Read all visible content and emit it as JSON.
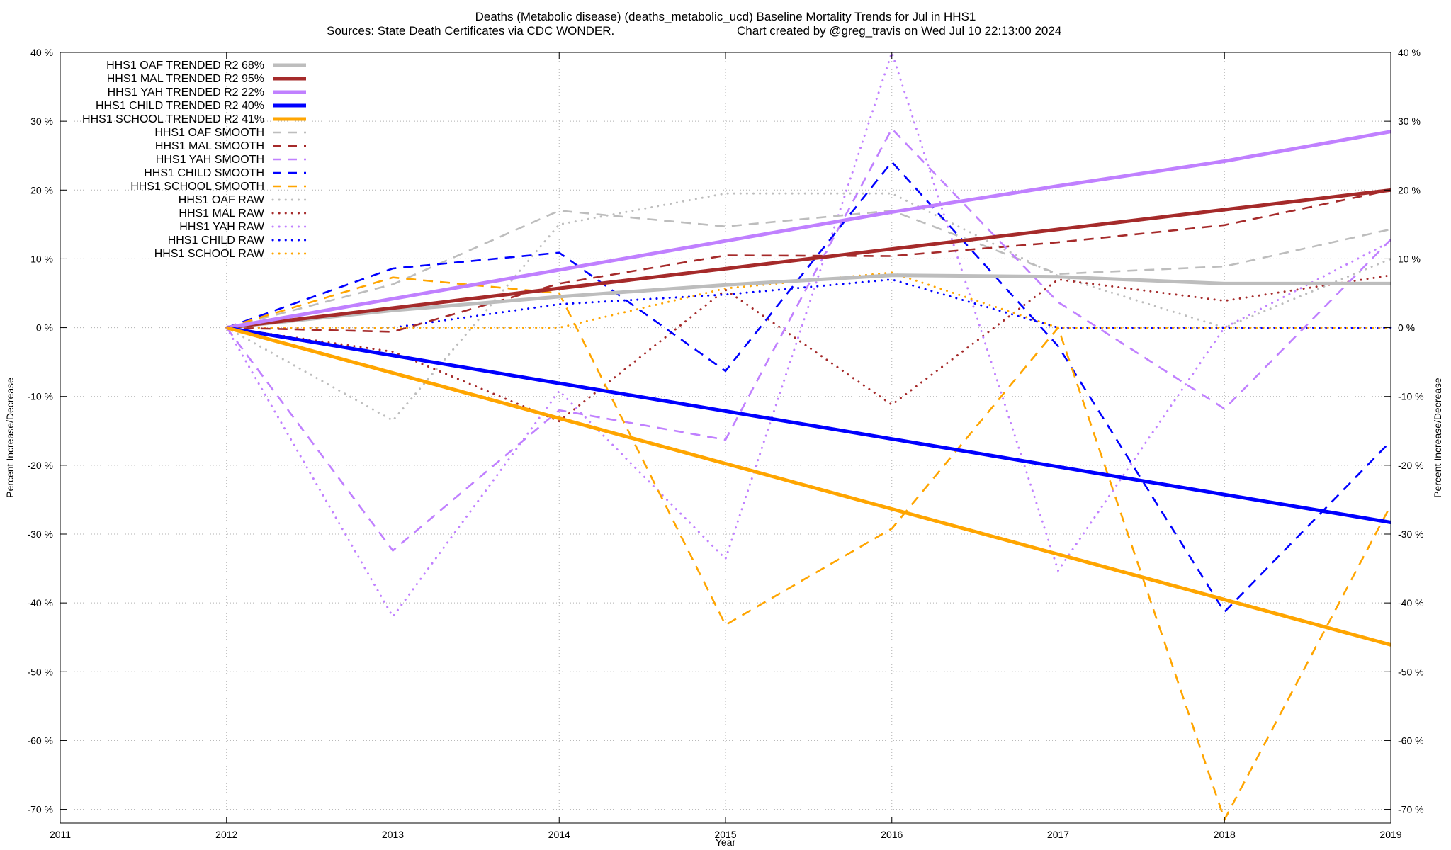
{
  "chart_data": {
    "type": "line",
    "title_line1": "Deaths (Metabolic disease) (deaths_metabolic_ucd)  Baseline Mortality Trends for Jul in HHS1",
    "title_line2_left": "Sources: State Death Certificates via CDC WONDER.",
    "title_line2_right": "Chart created by @greg_travis on Wed Jul 10 22:13:00 2024",
    "xlabel": "Year",
    "ylabel_left": "Percent Increase/Decrease",
    "ylabel_right": "Percent Increase/Decrease",
    "xlim": [
      2011,
      2019
    ],
    "ylim": [
      -72,
      40
    ],
    "x_ticks": [
      "2011",
      "2012",
      "2013",
      "2014",
      "2015",
      "2016",
      "2017",
      "2018",
      "2019"
    ],
    "y_ticks": [
      {
        "value": 40,
        "label": "40 %"
      },
      {
        "value": 30,
        "label": "30 %"
      },
      {
        "value": 20,
        "label": "20 %"
      },
      {
        "value": 10,
        "label": "10 %"
      },
      {
        "value": 0,
        "label": "0 %"
      },
      {
        "value": -10,
        "label": "-10 %"
      },
      {
        "value": -20,
        "label": "-20 %"
      },
      {
        "value": -30,
        "label": "-30 %"
      },
      {
        "value": -40,
        "label": "-40 %"
      },
      {
        "value": -50,
        "label": "-50 %"
      },
      {
        "value": -60,
        "label": "-60 %"
      },
      {
        "value": -70,
        "label": "-70 %"
      }
    ],
    "grid": true,
    "legend_position": "top-left",
    "series": [
      {
        "name": "HHS1 OAF TRENDED R2  68%",
        "style": "solid",
        "color": "#bdbdbd",
        "x": [
          2012,
          2013,
          2014,
          2015,
          2016,
          2017,
          2018,
          2019
        ],
        "y": [
          0,
          2.5,
          4.5,
          6.2,
          7.6,
          7.4,
          6.4,
          6.4
        ]
      },
      {
        "name": "HHS1 MAL TRENDED R2  95%",
        "style": "solid",
        "color": "#a52a2a",
        "x": [
          2012,
          2019
        ],
        "y": [
          0,
          20
        ]
      },
      {
        "name": "HHS1 YAH TRENDED R2  22%",
        "style": "solid",
        "color": "#c080ff",
        "x": [
          2012,
          2013,
          2014,
          2015,
          2016,
          2017,
          2018,
          2019
        ],
        "y": [
          0,
          4.2,
          8.4,
          12.6,
          16.8,
          20.6,
          24.2,
          28.5
        ]
      },
      {
        "name": "HHS1 CHILD TRENDED R2  40%",
        "style": "solid",
        "color": "#0000ff",
        "x": [
          2012,
          2019
        ],
        "y": [
          0,
          -28.3
        ]
      },
      {
        "name": "HHS1 SCHOOL TRENDED R2  41%",
        "style": "solid",
        "color": "#ffa500",
        "x": [
          2012,
          2019
        ],
        "y": [
          0,
          -46.1
        ]
      },
      {
        "name": "HHS1 OAF SMOOTH",
        "style": "dashed",
        "color": "#bdbdbd",
        "x": [
          2012,
          2013,
          2014,
          2015,
          2016,
          2017,
          2018,
          2019
        ],
        "y": [
          0,
          6.3,
          17,
          14.7,
          17,
          7.8,
          8.9,
          14.3
        ]
      },
      {
        "name": "HHS1 MAL SMOOTH",
        "style": "dashed",
        "color": "#a52a2a",
        "x": [
          2012,
          2013,
          2014,
          2015,
          2016,
          2017,
          2018,
          2019
        ],
        "y": [
          0,
          -0.6,
          6.4,
          10.5,
          10.4,
          12.4,
          14.9,
          20
        ]
      },
      {
        "name": "HHS1 YAH SMOOTH",
        "style": "dashed",
        "color": "#c080ff",
        "x": [
          2012,
          2013,
          2014,
          2015,
          2016,
          2017,
          2018,
          2019
        ],
        "y": [
          0,
          -32.4,
          -12,
          -16.3,
          28.9,
          3.7,
          -11.8,
          12.8
        ]
      },
      {
        "name": "HHS1 CHILD SMOOTH",
        "style": "dashed",
        "color": "#0000ff",
        "x": [
          2012,
          2013,
          2014,
          2015,
          2016,
          2017,
          2018,
          2019
        ],
        "y": [
          0,
          8.6,
          10.9,
          -6.3,
          24.1,
          -2.7,
          -41.3,
          -16.5
        ]
      },
      {
        "name": "HHS1 SCHOOL SMOOTH",
        "style": "dashed",
        "color": "#ffa500",
        "x": [
          2012,
          2013,
          2014,
          2015,
          2016,
          2017,
          2018,
          2019
        ],
        "y": [
          0,
          7.3,
          5,
          -43.2,
          -29.2,
          0,
          -71.5,
          -25.8
        ]
      },
      {
        "name": "HHS1 OAF RAW",
        "style": "dotted",
        "color": "#bdbdbd",
        "x": [
          2012,
          2013,
          2014,
          2015,
          2016,
          2017,
          2018,
          2019
        ],
        "y": [
          0,
          -13.5,
          15,
          19.5,
          19.5,
          7.5,
          0,
          10
        ]
      },
      {
        "name": "HHS1 MAL RAW",
        "style": "dotted",
        "color": "#a52a2a",
        "x": [
          2012,
          2013,
          2014,
          2015,
          2016,
          2017,
          2018,
          2019
        ],
        "y": [
          0,
          -3.5,
          -13.6,
          5.5,
          -11.2,
          7,
          3.9,
          7.6
        ]
      },
      {
        "name": "HHS1 YAH RAW",
        "style": "dotted",
        "color": "#c080ff",
        "x": [
          2012,
          2013,
          2014,
          2015,
          2016,
          2017,
          2018,
          2019
        ],
        "y": [
          0,
          -42,
          -9.2,
          -33.6,
          40,
          -35.3,
          0,
          12.5
        ]
      },
      {
        "name": "HHS1 CHILD RAW",
        "style": "dotted",
        "color": "#0000ff",
        "x": [
          2012,
          2013,
          2014,
          2015,
          2016,
          2017,
          2018,
          2019
        ],
        "y": [
          0,
          0,
          3.4,
          4.8,
          7,
          0,
          0,
          0
        ]
      },
      {
        "name": "HHS1 SCHOOL RAW",
        "style": "dotted",
        "color": "#ffa500",
        "x": [
          2012,
          2013,
          2014,
          2015,
          2016,
          2017,
          2018,
          2019
        ],
        "y": [
          0,
          0,
          0,
          5.7,
          8,
          0,
          0,
          0
        ]
      }
    ]
  }
}
